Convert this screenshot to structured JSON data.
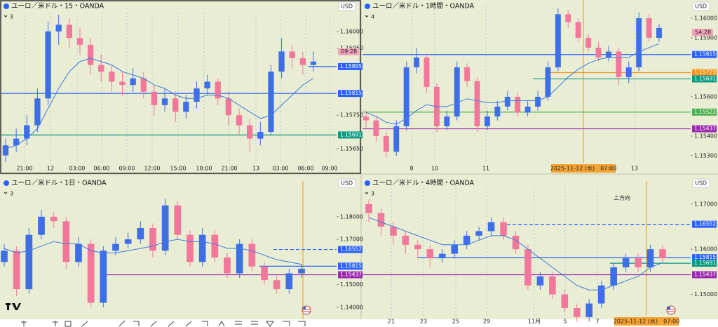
{
  "panels": [
    {
      "title": "ユーロ／米ドル・15・OANDA",
      "legend": "3",
      "currency": "USD",
      "ylim": [
        1.15608,
        1.16056
      ],
      "yticks": [
        {
          "value": 1.16,
          "label": "1.16000"
        },
        {
          "value": 1.1595,
          "label": "1.15950"
        },
        {
          "value": 1.1575,
          "label": "1.15750"
        },
        {
          "value": 1.1565,
          "label": "1.15650"
        }
      ],
      "xlabels": [
        "21:00",
        "12",
        "03:00",
        "06:00",
        "09:00",
        "12:00",
        "15:00",
        "18:00",
        "21:00",
        "13",
        "03:00",
        "06:00",
        "09:00"
      ],
      "levels": [
        {
          "value": 1.15895,
          "label": "1.15895",
          "color": "#2962ff"
        },
        {
          "value": 1.15815,
          "label": "1.15815",
          "color": "#2962ff"
        },
        {
          "value": 1.15691,
          "label": "1.15691",
          "color": "#089981"
        }
      ],
      "countdown": "09:28",
      "candles": [
        [
          1.1563,
          1.1568,
          1.1561,
          1.1566
        ],
        [
          1.1566,
          1.1571,
          1.1564,
          1.1568
        ],
        [
          1.1568,
          1.1575,
          1.1566,
          1.1572
        ],
        [
          1.1572,
          1.1583,
          1.157,
          1.158
        ],
        [
          1.158,
          1.1603,
          1.1578,
          1.16
        ],
        [
          1.16,
          1.1605,
          1.1596,
          1.1602
        ],
        [
          1.1602,
          1.1604,
          1.1595,
          1.1598
        ],
        [
          1.1598,
          1.1601,
          1.1593,
          1.1596
        ],
        [
          1.1596,
          1.1598,
          1.1587,
          1.159
        ],
        [
          1.159,
          1.1593,
          1.1585,
          1.1588
        ],
        [
          1.1588,
          1.159,
          1.1582,
          1.1585
        ],
        [
          1.1585,
          1.1588,
          1.1581,
          1.1584
        ],
        [
          1.1584,
          1.1589,
          1.1582,
          1.1586
        ],
        [
          1.1586,
          1.1588,
          1.158,
          1.1582
        ],
        [
          1.1582,
          1.1584,
          1.1575,
          1.1578
        ],
        [
          1.1578,
          1.1583,
          1.1576,
          1.158
        ],
        [
          1.158,
          1.1582,
          1.1573,
          1.1576
        ],
        [
          1.1576,
          1.1581,
          1.1574,
          1.1579
        ],
        [
          1.1579,
          1.1585,
          1.1577,
          1.1583
        ],
        [
          1.1583,
          1.1587,
          1.1581,
          1.1585
        ],
        [
          1.1585,
          1.1586,
          1.1578,
          1.158
        ],
        [
          1.158,
          1.1582,
          1.1572,
          1.1575
        ],
        [
          1.1575,
          1.1577,
          1.1569,
          1.1572
        ],
        [
          1.1572,
          1.1574,
          1.1564,
          1.1568
        ],
        [
          1.1568,
          1.1573,
          1.1566,
          1.157
        ],
        [
          1.157,
          1.159,
          1.1569,
          1.1588
        ],
        [
          1.1588,
          1.1598,
          1.1586,
          1.1594
        ],
        [
          1.1594,
          1.1596,
          1.1589,
          1.1592
        ],
        [
          1.1592,
          1.1594,
          1.1587,
          1.159
        ],
        [
          1.159,
          1.1594,
          1.1588,
          1.1591
        ]
      ],
      "ma": [
        1.1565,
        1.1566,
        1.1568,
        1.1571,
        1.1577,
        1.1583,
        1.1588,
        1.1591,
        1.1592,
        1.1591,
        1.159,
        1.1588,
        1.1587,
        1.1586,
        1.1584,
        1.1583,
        1.1581,
        1.158,
        1.158,
        1.1581,
        1.1581,
        1.158,
        1.1578,
        1.1576,
        1.1574,
        1.1575,
        1.1578,
        1.1581,
        1.1584,
        1.1586
      ]
    },
    {
      "title": "ユーロ／米ドル・1時間・OANDA",
      "legend": "4",
      "currency": "USD",
      "ylim": [
        1.15264,
        1.16064
      ],
      "yticks": [
        {
          "value": 1.16,
          "label": "1.16000"
        },
        {
          "value": 1.159,
          "label": "1.15900"
        },
        {
          "value": 1.156,
          "label": "1.15600"
        },
        {
          "value": 1.154,
          "label": "1.15400"
        },
        {
          "value": 1.153,
          "label": "1.15300"
        }
      ],
      "xlabels": [
        "8",
        "10",
        "11",
        "13"
      ],
      "levels": [
        {
          "value": 1.15815,
          "label": "1.15815",
          "color": "#2962ff"
        },
        {
          "value": 1.15723,
          "label": "1.15723",
          "color": "#f7931a"
        },
        {
          "value": 1.15691,
          "label": "1.15691",
          "color": "#089981"
        },
        {
          "value": 1.15522,
          "label": "1.15522",
          "color": "#4caf50"
        },
        {
          "value": 1.15437,
          "label": "1.15437",
          "color": "#9c27b0"
        }
      ],
      "countdown": "54:28",
      "marker": "2025-11-12 (水)　07:00",
      "candles": [
        [
          1.155,
          1.1553,
          1.1544,
          1.1548
        ],
        [
          1.1548,
          1.155,
          1.1537,
          1.154
        ],
        [
          1.154,
          1.1542,
          1.1529,
          1.1532
        ],
        [
          1.1532,
          1.1548,
          1.153,
          1.1545
        ],
        [
          1.1545,
          1.1578,
          1.1543,
          1.1575
        ],
        [
          1.1575,
          1.1585,
          1.1572,
          1.158
        ],
        [
          1.158,
          1.1582,
          1.1562,
          1.1565
        ],
        [
          1.1565,
          1.1567,
          1.1542,
          1.1545
        ],
        [
          1.1545,
          1.1553,
          1.1543,
          1.155
        ],
        [
          1.155,
          1.1578,
          1.1548,
          1.1575
        ],
        [
          1.1575,
          1.1577,
          1.1565,
          1.1568
        ],
        [
          1.1568,
          1.157,
          1.1542,
          1.1545
        ],
        [
          1.1545,
          1.1553,
          1.1543,
          1.155
        ],
        [
          1.155,
          1.1558,
          1.1548,
          1.1555
        ],
        [
          1.1555,
          1.1563,
          1.1553,
          1.156
        ],
        [
          1.156,
          1.1562,
          1.155,
          1.1552
        ],
        [
          1.1552,
          1.1558,
          1.155,
          1.1555
        ],
        [
          1.1555,
          1.1563,
          1.1553,
          1.156
        ],
        [
          1.156,
          1.1578,
          1.1558,
          1.1575
        ],
        [
          1.1575,
          1.1605,
          1.1573,
          1.1602
        ],
        [
          1.1602,
          1.1604,
          1.1595,
          1.1598
        ],
        [
          1.1598,
          1.16,
          1.1588,
          1.159
        ],
        [
          1.159,
          1.1592,
          1.1583,
          1.1585
        ],
        [
          1.1585,
          1.1588,
          1.1578,
          1.158
        ],
        [
          1.158,
          1.1586,
          1.1578,
          1.1583
        ],
        [
          1.1583,
          1.1585,
          1.1566,
          1.157
        ],
        [
          1.157,
          1.1578,
          1.1567,
          1.1575
        ],
        [
          1.1575,
          1.1603,
          1.1573,
          1.16
        ],
        [
          1.16,
          1.1602,
          1.1588,
          1.159
        ],
        [
          1.159,
          1.1597,
          1.1588,
          1.1595
        ]
      ],
      "ma": [
        1.1552,
        1.155,
        1.1547,
        1.1546,
        1.1549,
        1.1553,
        1.1556,
        1.1555,
        1.1555,
        1.1557,
        1.1559,
        1.1558,
        1.1557,
        1.1557,
        1.1558,
        1.1558,
        1.1558,
        1.1558,
        1.156,
        1.1565,
        1.157,
        1.1574,
        1.1577,
        1.1579,
        1.158,
        1.158,
        1.158,
        1.1583,
        1.1585,
        1.1587
      ]
    },
    {
      "title": "ユーロ／米ドル・1日・OANDA",
      "legend": "3",
      "currency": "USD",
      "ylim": [
        1.13471,
        1.19265
      ],
      "yticks": [
        {
          "value": 1.18,
          "label": "1.18000"
        },
        {
          "value": 1.17,
          "label": "1.17000"
        },
        {
          "value": 1.15,
          "label": "1.15000"
        },
        {
          "value": 1.14,
          "label": "1.14000"
        }
      ],
      "xlabels": [],
      "levels": [
        {
          "value": 1.16552,
          "label": "1.16552",
          "color": "#2962ff",
          "dashed": true
        },
        {
          "value": 1.15815,
          "label": "1.15815",
          "color": "#2962ff"
        },
        {
          "value": 1.15437,
          "label": "1.15437",
          "color": "#9c27b0"
        }
      ],
      "candles": [
        [
          1.16,
          1.168,
          1.158,
          1.165
        ],
        [
          1.165,
          1.167,
          1.145,
          1.148
        ],
        [
          1.148,
          1.175,
          1.146,
          1.172
        ],
        [
          1.172,
          1.183,
          1.17,
          1.18
        ],
        [
          1.18,
          1.182,
          1.175,
          1.178
        ],
        [
          1.178,
          1.18,
          1.157,
          1.16
        ],
        [
          1.16,
          1.171,
          1.158,
          1.168
        ],
        [
          1.168,
          1.17,
          1.14,
          1.142
        ],
        [
          1.142,
          1.167,
          1.14,
          1.165
        ],
        [
          1.165,
          1.171,
          1.163,
          1.168
        ],
        [
          1.168,
          1.173,
          1.166,
          1.17
        ],
        [
          1.17,
          1.178,
          1.168,
          1.175
        ],
        [
          1.175,
          1.177,
          1.162,
          1.165
        ],
        [
          1.165,
          1.188,
          1.163,
          1.185
        ],
        [
          1.185,
          1.187,
          1.17,
          1.172
        ],
        [
          1.172,
          1.174,
          1.158,
          1.16
        ],
        [
          1.16,
          1.175,
          1.158,
          1.172
        ],
        [
          1.172,
          1.174,
          1.16,
          1.162
        ],
        [
          1.162,
          1.164,
          1.153,
          1.155
        ],
        [
          1.155,
          1.17,
          1.153,
          1.168
        ],
        [
          1.168,
          1.17,
          1.156,
          1.158
        ],
        [
          1.158,
          1.16,
          1.15,
          1.152
        ],
        [
          1.152,
          1.154,
          1.146,
          1.148
        ],
        [
          1.148,
          1.157,
          1.146,
          1.155
        ],
        [
          1.155,
          1.159,
          1.153,
          1.157
        ]
      ],
      "ma": [
        1.166,
        1.164,
        1.165,
        1.167,
        1.169,
        1.168,
        1.168,
        1.165,
        1.164,
        1.164,
        1.165,
        1.166,
        1.167,
        1.169,
        1.17,
        1.169,
        1.169,
        1.168,
        1.166,
        1.166,
        1.165,
        1.163,
        1.161,
        1.16,
        1.159
      ]
    },
    {
      "title": "ユーロ／米ドル・4時間・OANDA",
      "legend": "3",
      "currency": "USD",
      "ylim": [
        1.14529,
        1.17353
      ],
      "yticks": [
        {
          "value": 1.17,
          "label": "1.17000"
        },
        {
          "value": 1.16,
          "label": "1.16000"
        },
        {
          "value": 1.15,
          "label": "1.15000"
        }
      ],
      "xlabels": [
        "21",
        "23",
        "25",
        "29",
        "11月",
        "5",
        "7"
      ],
      "levels": [
        {
          "value": 1.16552,
          "label": "1.16552",
          "color": "#2962ff",
          "dashed": true
        },
        {
          "value": 1.15815,
          "label": "1.15815",
          "color": "#2962ff"
        },
        {
          "value": 1.15691,
          "label": "1.15691",
          "color": "#089981"
        },
        {
          "value": 1.15437,
          "label": "1.15437",
          "color": "#9c27b0"
        }
      ],
      "marker": "2025-11-12 (水)　07:00",
      "note": "上方向",
      "candles": [
        [
          1.17,
          1.171,
          1.166,
          1.168
        ],
        [
          1.168,
          1.169,
          1.163,
          1.165
        ],
        [
          1.165,
          1.166,
          1.161,
          1.163
        ],
        [
          1.163,
          1.164,
          1.159,
          1.161
        ],
        [
          1.161,
          1.162,
          1.158,
          1.16
        ],
        [
          1.16,
          1.161,
          1.156,
          1.158
        ],
        [
          1.158,
          1.16,
          1.157,
          1.159
        ],
        [
          1.159,
          1.162,
          1.158,
          1.161
        ],
        [
          1.161,
          1.164,
          1.16,
          1.163
        ],
        [
          1.163,
          1.165,
          1.162,
          1.164
        ],
        [
          1.164,
          1.167,
          1.163,
          1.166
        ],
        [
          1.166,
          1.167,
          1.162,
          1.163
        ],
        [
          1.163,
          1.164,
          1.159,
          1.16
        ],
        [
          1.16,
          1.161,
          1.151,
          1.152
        ],
        [
          1.152,
          1.155,
          1.151,
          1.154
        ],
        [
          1.154,
          1.155,
          1.149,
          1.15
        ],
        [
          1.15,
          1.151,
          1.146,
          1.147
        ],
        [
          1.147,
          1.148,
          1.144,
          1.145
        ],
        [
          1.145,
          1.149,
          1.144,
          1.148
        ],
        [
          1.148,
          1.153,
          1.147,
          1.152
        ],
        [
          1.152,
          1.157,
          1.151,
          1.156
        ],
        [
          1.156,
          1.159,
          1.155,
          1.158
        ],
        [
          1.158,
          1.159,
          1.155,
          1.156
        ],
        [
          1.156,
          1.161,
          1.155,
          1.16
        ],
        [
          1.16,
          1.161,
          1.157,
          1.158
        ]
      ],
      "ma": [
        1.167,
        1.166,
        1.165,
        1.164,
        1.163,
        1.162,
        1.161,
        1.161,
        1.161,
        1.162,
        1.163,
        1.163,
        1.162,
        1.16,
        1.158,
        1.156,
        1.154,
        1.152,
        1.151,
        1.151,
        1.152,
        1.153,
        1.154,
        1.156,
        1.157
      ]
    }
  ]
}
